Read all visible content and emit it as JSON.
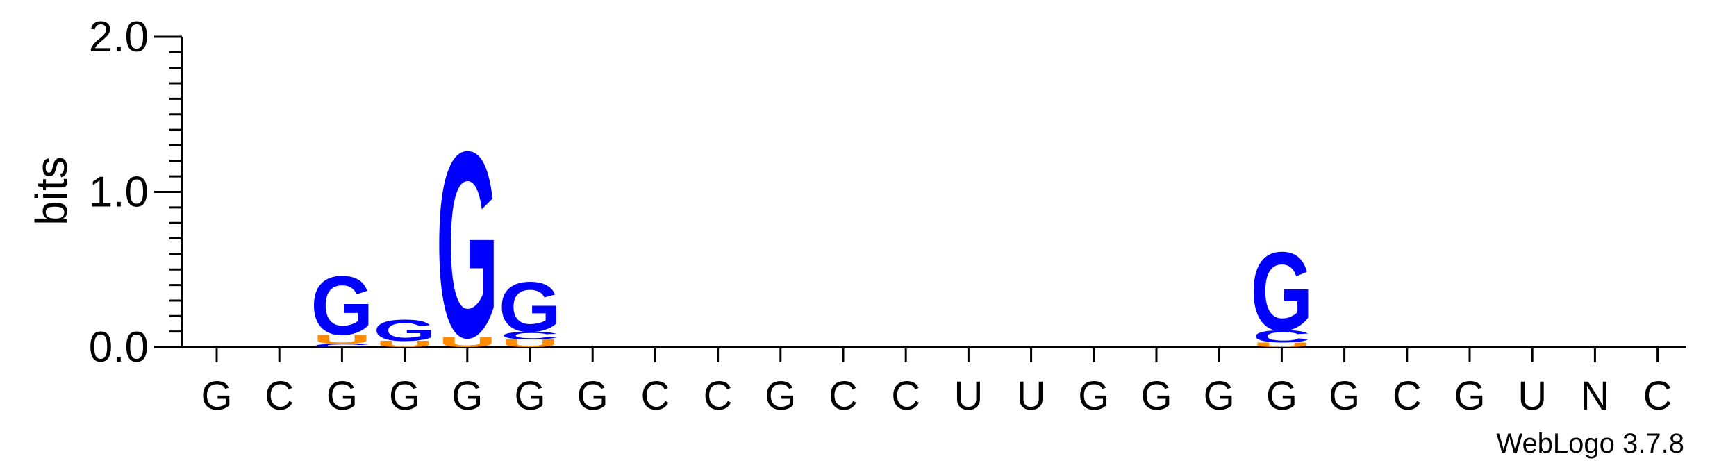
{
  "chart_data": {
    "type": "sequence-logo",
    "ylabel": "bits",
    "ylim": [
      0,
      2.0
    ],
    "yticks": [
      "0.0",
      "1.0",
      "2.0"
    ],
    "positions": [
      "G",
      "C",
      "G",
      "G",
      "G",
      "G",
      "G",
      "C",
      "C",
      "G",
      "C",
      "C",
      "U",
      "U",
      "G",
      "G",
      "G",
      "G",
      "G",
      "C",
      "G",
      "U",
      "N",
      "C"
    ],
    "stacks": [
      {
        "position": 3,
        "letters": [
          {
            "base": "C",
            "bits": 0.02
          },
          {
            "base": "U",
            "bits": 0.06
          },
          {
            "base": "G",
            "bits": 0.39
          }
        ]
      },
      {
        "position": 4,
        "letters": [
          {
            "base": "U",
            "bits": 0.04
          },
          {
            "base": "G",
            "bits": 0.14
          }
        ]
      },
      {
        "position": 5,
        "letters": [
          {
            "base": "U",
            "bits": 0.07
          },
          {
            "base": "G",
            "bits": 1.23
          }
        ]
      },
      {
        "position": 6,
        "letters": [
          {
            "base": "U",
            "bits": 0.05
          },
          {
            "base": "C",
            "bits": 0.05
          },
          {
            "base": "G",
            "bits": 0.33
          }
        ]
      },
      {
        "position": 18,
        "letters": [
          {
            "base": "U",
            "bits": 0.03
          },
          {
            "base": "C",
            "bits": 0.08
          },
          {
            "base": "G",
            "bits": 0.52
          }
        ]
      }
    ],
    "colors": {
      "G": "#0000ff",
      "C": "#0000ff",
      "U": "#ff8c00",
      "A": "#ff8c00"
    },
    "credit": "WebLogo 3.7.8"
  }
}
